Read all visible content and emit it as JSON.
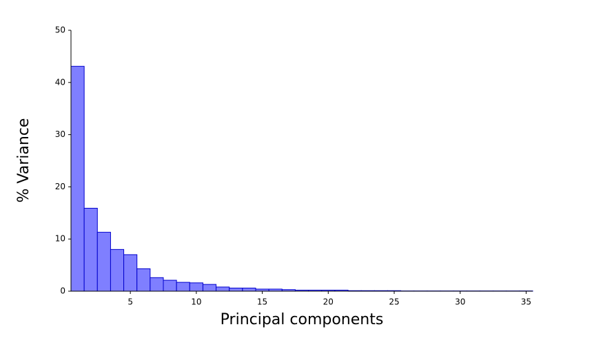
{
  "chart_data": {
    "type": "histogram",
    "x_label": "Principal components",
    "y_label": "% Variance",
    "bins": [
      0.5,
      1.5,
      2.5,
      3.5,
      4.5,
      5.5,
      6.5,
      7.5,
      8.5,
      9.5,
      10.5,
      11.5,
      12.5,
      13.5,
      14.5,
      15.5,
      16.5,
      17.5,
      18.5,
      19.5,
      20.5,
      21.5,
      22.5,
      23.5,
      24.5,
      25.5,
      26.5,
      27.5,
      28.5,
      29.5,
      30.5,
      31.5,
      32.5,
      33.5,
      34.5,
      35.5
    ],
    "values": [
      43.1,
      15.9,
      11.3,
      8.0,
      7.0,
      4.3,
      2.6,
      2.1,
      1.7,
      1.6,
      1.3,
      0.8,
      0.6,
      0.6,
      0.4,
      0.4,
      0.3,
      0.2,
      0.2,
      0.2,
      0.2,
      0.1,
      0.1,
      0.1,
      0.1,
      0.05,
      0.05,
      0.05,
      0.05,
      0.05,
      0.05,
      0.05,
      0.05,
      0.05,
      0.05
    ],
    "color": "#7f7fff",
    "edge_color": "#0000cc",
    "xlim": [
      0.5,
      35.5
    ],
    "xticks": [
      5,
      10,
      15,
      20,
      25,
      30,
      35
    ],
    "ylim": [
      0,
      50
    ],
    "yticks": [
      0,
      10,
      20,
      30,
      40,
      50
    ],
    "grid": false
  }
}
